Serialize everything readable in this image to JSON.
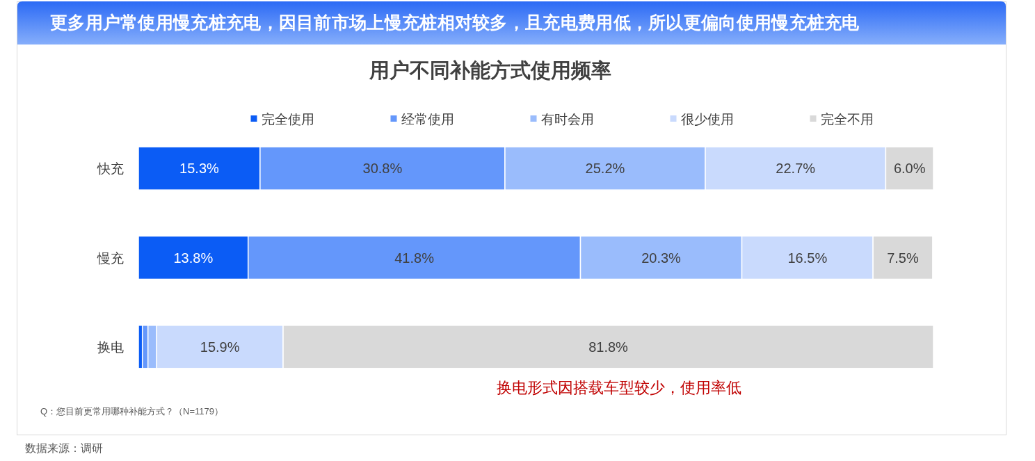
{
  "chart_data": {
    "type": "bar",
    "orientation": "horizontal",
    "stacked": true,
    "title": "用户不同补能方式使用频率",
    "categories": [
      "快充",
      "慢充",
      "换电"
    ],
    "series": [
      {
        "name": "完全使用",
        "color": "#0b5cf5",
        "values": [
          15.3,
          13.8,
          0.5
        ],
        "value_labels": [
          "15.3%",
          "13.8%",
          null
        ]
      },
      {
        "name": "经常使用",
        "color": "#6497fb",
        "values": [
          30.8,
          41.8,
          0.7
        ],
        "value_labels": [
          "30.8%",
          "41.8%",
          null
        ]
      },
      {
        "name": "有时会用",
        "color": "#9abcfc",
        "values": [
          25.2,
          20.3,
          1.1
        ],
        "value_labels": [
          "25.2%",
          "20.3%",
          null
        ]
      },
      {
        "name": "很少使用",
        "color": "#c9dafd",
        "values": [
          22.7,
          16.5,
          15.9
        ],
        "value_labels": [
          "22.7%",
          "16.5%",
          "15.9%"
        ]
      },
      {
        "name": "完全不用",
        "color": "#d9d9d9",
        "values": [
          6.0,
          7.5,
          81.8
        ],
        "value_labels": [
          "6.0%",
          "7.5%",
          "81.8%"
        ]
      }
    ],
    "legend": "top",
    "annotations": [
      "更多用户常使用慢充桩充电，因目前市场上慢充桩相对较多，且充电费用低，所以更偏向使用慢充桩充电",
      "换电形式因搭载车型较少，使用率低",
      "Q：您目前更常用哪种补能方式？（N=1179）",
      "数据来源：调研"
    ]
  }
}
